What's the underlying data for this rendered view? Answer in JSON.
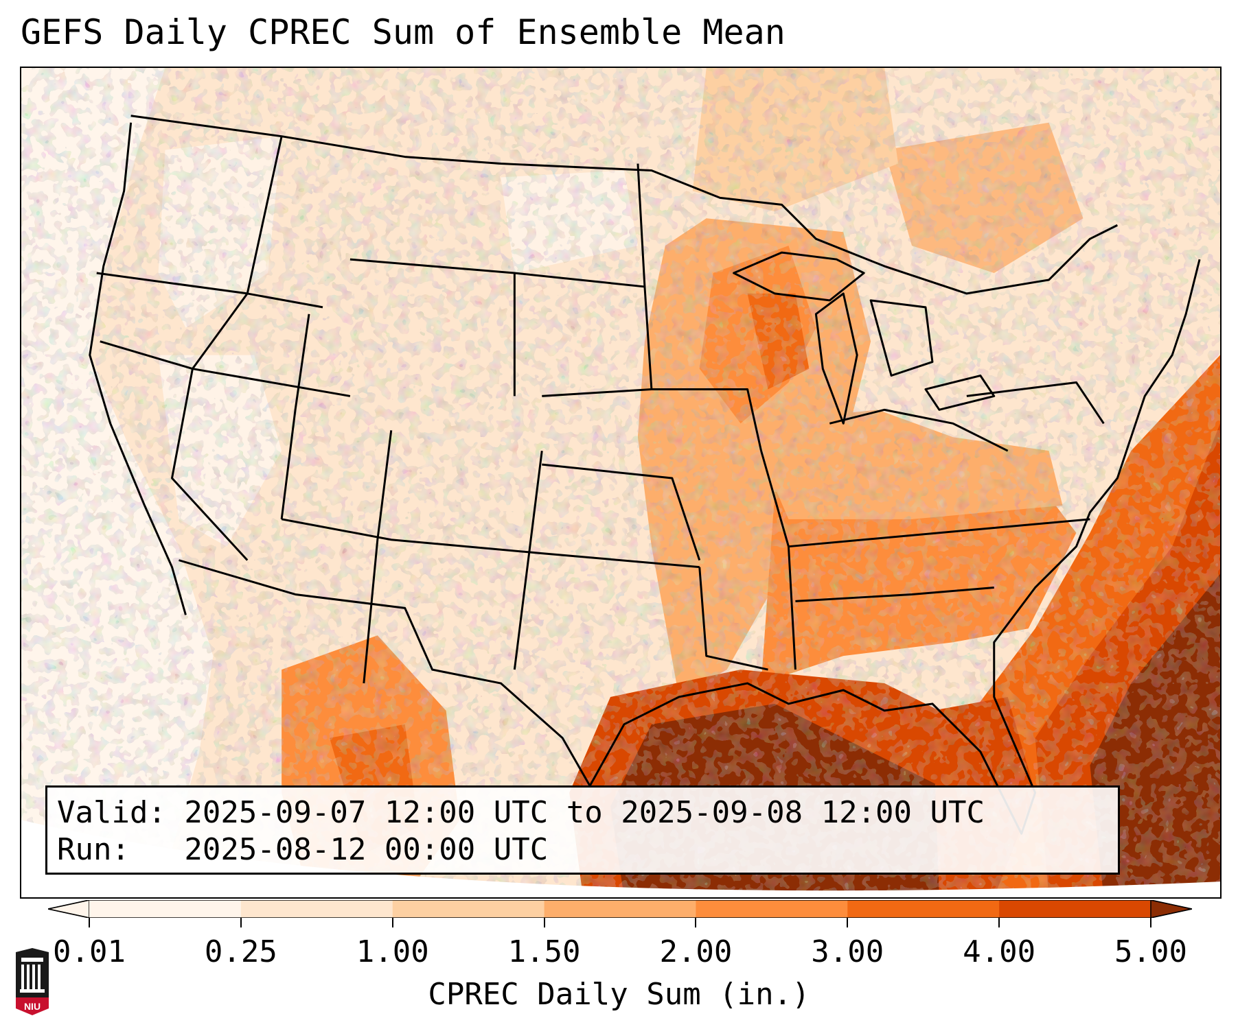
{
  "title": "GEFS Daily CPREC Sum of Ensemble Mean",
  "info": {
    "valid_line": "Valid: 2025-09-07 12:00 UTC to 2025-09-08 12:00 UTC",
    "run_line": "Run:   2025-08-12 00:00 UTC"
  },
  "colorbar": {
    "label": "CPREC Daily Sum (in.)",
    "ticks": [
      "0.01",
      "0.25",
      "1.00",
      "1.50",
      "2.00",
      "3.00",
      "4.00",
      "5.00"
    ],
    "colors": [
      "#fff5eb",
      "#fee6ce",
      "#fdd0a2",
      "#fdae6b",
      "#fd8d3c",
      "#f16913",
      "#d94801",
      "#8c2d04"
    ],
    "extend": "both"
  },
  "logo": {
    "text": "NIU",
    "icon": "niu-university-logo-icon"
  }
}
